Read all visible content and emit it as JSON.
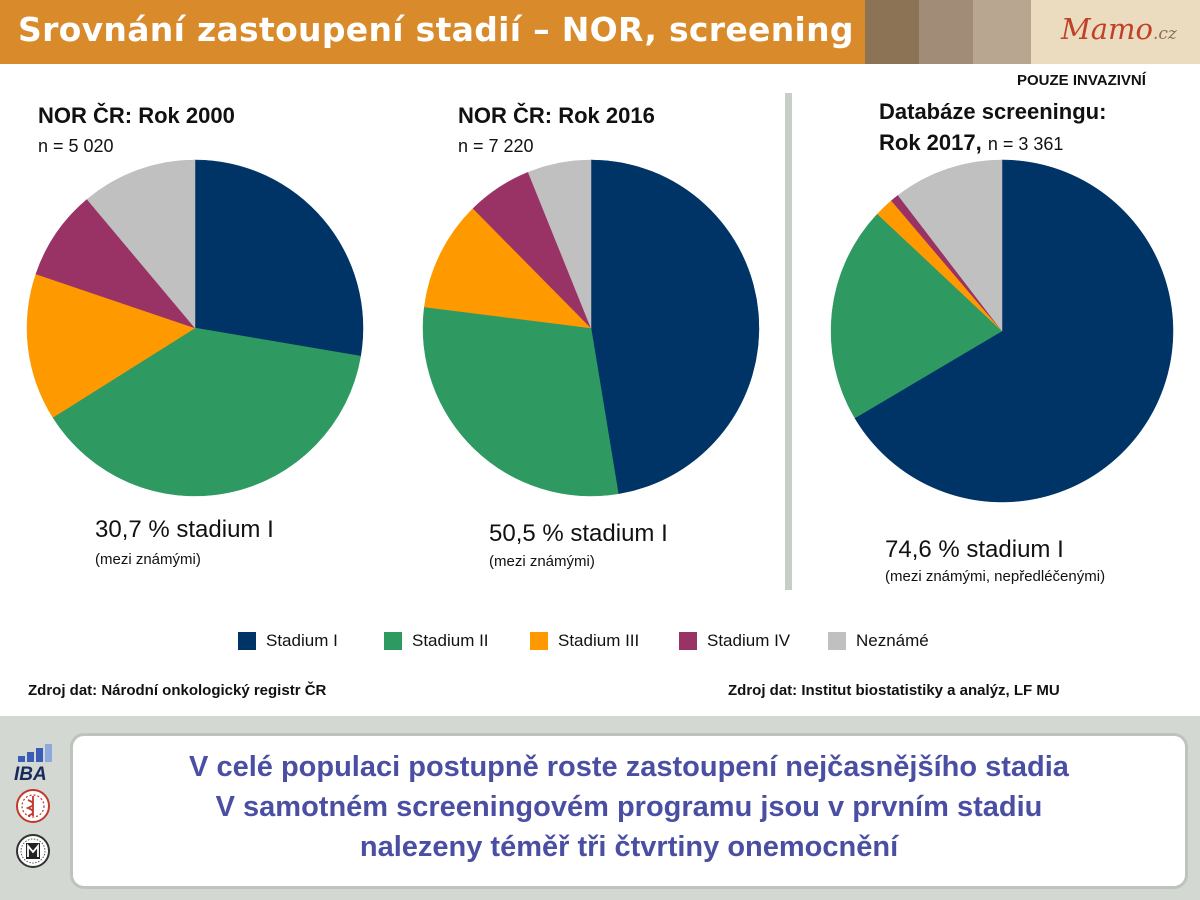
{
  "header": {
    "title": "Srovnání zastoupení stadií – NOR, screening",
    "logo_name": "Mamo",
    "logo_suffix": ".cz"
  },
  "note": "POUZE INVAZIVNÍ",
  "panels": [
    {
      "title": "NOR ČR: Rok 2000",
      "n_label": "n = 5 020",
      "stat": "30,7 % stadium I",
      "stat_note": "(mezi známými)"
    },
    {
      "title": "NOR ČR: Rok 2016",
      "n_label": "n = 7 220",
      "stat": "50,5 % stadium I",
      "stat_note": "(mezi známými)"
    },
    {
      "title_line1": "Databáze screeningu:",
      "title_line2": "Rok 2017,",
      "n_label": "n = 3 361",
      "stat": "74,6 % stadium I",
      "stat_note": "(mezi známými, nepředléčenými)"
    }
  ],
  "legend": [
    {
      "label": "Stadium I",
      "color": "#003366"
    },
    {
      "label": "Stadium II",
      "color": "#2e9a62"
    },
    {
      "label": "Stadium III",
      "color": "#ff9900"
    },
    {
      "label": "Stadium IV",
      "color": "#993366"
    },
    {
      "label": "Neznámé",
      "color": "#c0c0c0"
    }
  ],
  "sources": {
    "left": "Zdroj dat: Národní onkologický registr ČR",
    "right": "Zdroj dat: Institut biostatistiky a analýz, LF MU"
  },
  "message": [
    "V celé populaci postupně roste zastoupení nejčasnějšího stadia",
    "V samotném screeningovém programu jsou v prvním stadiu",
    "nalezeny téměř tři čtvrtiny onemocnění"
  ],
  "logos": {
    "iba": "IBA"
  },
  "chart_data": [
    {
      "type": "pie",
      "title": "NOR ČR: Rok 2000",
      "categories": [
        "Stadium I",
        "Stadium II",
        "Stadium III",
        "Stadium IV",
        "Neznámé"
      ],
      "values": [
        27.4,
        38.0,
        14.0,
        8.6,
        11.0
      ],
      "unit": "%"
    },
    {
      "type": "pie",
      "title": "NOR ČR: Rok 2016",
      "categories": [
        "Stadium I",
        "Stadium II",
        "Stadium III",
        "Stadium IV",
        "Neznámé"
      ],
      "values": [
        47.4,
        29.6,
        10.6,
        6.3,
        6.1
      ],
      "unit": "%"
    },
    {
      "type": "pie",
      "title": "Databáze screeningu: Rok 2017",
      "categories": [
        "Stadium I",
        "Stadium II",
        "Stadium III",
        "Stadium IV",
        "Neznámé"
      ],
      "values": [
        66.5,
        20.5,
        1.8,
        0.8,
        10.4
      ],
      "unit": "%"
    }
  ]
}
